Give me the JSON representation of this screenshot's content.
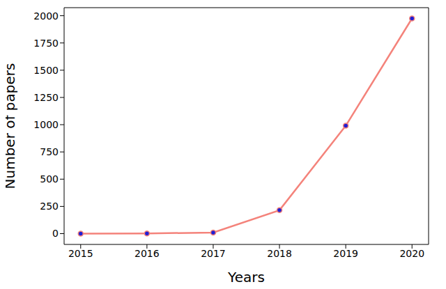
{
  "chart_data": {
    "type": "line",
    "x_label": "Years",
    "y_label": "Number of papers",
    "x": [
      2015,
      2016,
      2017,
      2018,
      2019,
      2020
    ],
    "values": [
      0,
      2,
      10,
      215,
      990,
      1975
    ],
    "color": "#f4837b",
    "marker": "o",
    "marker_color": "#1f1fd6",
    "xlim": [
      2014.75,
      2020.25
    ],
    "xticks": [
      2015,
      2016,
      2017,
      2018,
      2019,
      2020
    ],
    "ylim": [
      -99,
      2074
    ],
    "yticks": [
      0,
      250,
      500,
      750,
      1000,
      1250,
      1500,
      1750,
      2000
    ],
    "grid": false
  }
}
